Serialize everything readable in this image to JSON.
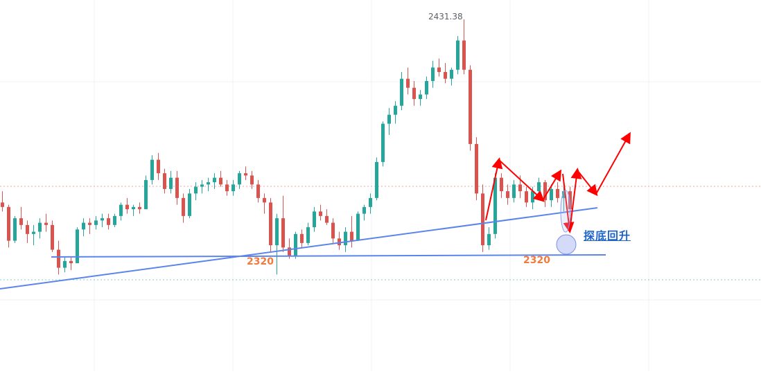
{
  "labels": {
    "peak_price": "2431.38",
    "support_left": "2320",
    "support_right": "2320",
    "annotation": "探底回升"
  },
  "colors": {
    "up": "#26a69a",
    "down": "#d9534f",
    "trendline": "#5b84ec",
    "arrow": "#ff0000",
    "price_line": "#f2a0a0",
    "low_line": "#7fd0c4",
    "support_text": "#f07b3c",
    "annotation_text": "#1e63c8"
  },
  "chart_data": {
    "type": "candlestick",
    "series_count": 1,
    "ylim": [
      2275,
      2440
    ],
    "support_level": 2320,
    "peak_high": 2431.38,
    "candles": [
      [
        2350,
        2355,
        2346,
        2348
      ],
      [
        2348,
        2349,
        2330,
        2333
      ],
      [
        2333,
        2344,
        2332,
        2343
      ],
      [
        2343,
        2348,
        2338,
        2340
      ],
      [
        2340,
        2342,
        2332,
        2336
      ],
      [
        2336,
        2340,
        2331,
        2337
      ],
      [
        2337,
        2343,
        2334,
        2341
      ],
      [
        2341,
        2345,
        2337,
        2340
      ],
      [
        2340,
        2342,
        2328,
        2329
      ],
      [
        2329,
        2333,
        2318,
        2321
      ],
      [
        2321,
        2326,
        2319,
        2324
      ],
      [
        2324,
        2326,
        2320,
        2323
      ],
      [
        2323,
        2339,
        2323,
        2338
      ],
      [
        2338,
        2343,
        2335,
        2341
      ],
      [
        2341,
        2343,
        2336,
        2340
      ],
      [
        2340,
        2344,
        2338,
        2342
      ],
      [
        2342,
        2345,
        2339,
        2343
      ],
      [
        2343,
        2345,
        2338,
        2340
      ],
      [
        2340,
        2345,
        2339,
        2344
      ],
      [
        2344,
        2350,
        2342,
        2349
      ],
      [
        2349,
        2352,
        2345,
        2347
      ],
      [
        2347,
        2349,
        2344,
        2348
      ],
      [
        2348,
        2350,
        2345,
        2347
      ],
      [
        2347,
        2362,
        2347,
        2360
      ],
      [
        2360,
        2371,
        2358,
        2369
      ],
      [
        2369,
        2372,
        2360,
        2363
      ],
      [
        2363,
        2365,
        2354,
        2356
      ],
      [
        2356,
        2364,
        2354,
        2361
      ],
      [
        2361,
        2364,
        2349,
        2352
      ],
      [
        2352,
        2354,
        2341,
        2344
      ],
      [
        2344,
        2356,
        2343,
        2354
      ],
      [
        2354,
        2359,
        2351,
        2357
      ],
      [
        2357,
        2360,
        2354,
        2358
      ],
      [
        2358,
        2361,
        2355,
        2359
      ],
      [
        2359,
        2363,
        2356,
        2361
      ],
      [
        2361,
        2364,
        2357,
        2358
      ],
      [
        2358,
        2360,
        2353,
        2355
      ],
      [
        2355,
        2360,
        2353,
        2358
      ],
      [
        2358,
        2364,
        2356,
        2363
      ],
      [
        2363,
        2366,
        2360,
        2362
      ],
      [
        2362,
        2364,
        2356,
        2358
      ],
      [
        2358,
        2360,
        2350,
        2352
      ],
      [
        2352,
        2354,
        2345,
        2350
      ],
      [
        2350,
        2352,
        2328,
        2331
      ],
      [
        2331,
        2345,
        2318,
        2343
      ],
      [
        2343,
        2353,
        2328,
        2330
      ],
      [
        2330,
        2334,
        2325,
        2326
      ],
      [
        2326,
        2337,
        2325,
        2336
      ],
      [
        2336,
        2338,
        2330,
        2332
      ],
      [
        2332,
        2341,
        2331,
        2339
      ],
      [
        2339,
        2348,
        2337,
        2346
      ],
      [
        2346,
        2349,
        2342,
        2344
      ],
      [
        2344,
        2347,
        2340,
        2341
      ],
      [
        2341,
        2343,
        2332,
        2334
      ],
      [
        2334,
        2337,
        2329,
        2331
      ],
      [
        2331,
        2339,
        2328,
        2337
      ],
      [
        2337,
        2344,
        2330,
        2333
      ],
      [
        2333,
        2346,
        2333,
        2345
      ],
      [
        2345,
        2349,
        2342,
        2348
      ],
      [
        2348,
        2354,
        2345,
        2352
      ],
      [
        2352,
        2370,
        2351,
        2368
      ],
      [
        2368,
        2386,
        2366,
        2385
      ],
      [
        2385,
        2392,
        2380,
        2389
      ],
      [
        2389,
        2395,
        2385,
        2393
      ],
      [
        2393,
        2408,
        2391,
        2405
      ],
      [
        2405,
        2410,
        2398,
        2401
      ],
      [
        2401,
        2404,
        2393,
        2396
      ],
      [
        2396,
        2400,
        2393,
        2398
      ],
      [
        2398,
        2406,
        2396,
        2404
      ],
      [
        2404,
        2413,
        2401,
        2410
      ],
      [
        2410,
        2414,
        2406,
        2408
      ],
      [
        2408,
        2412,
        2403,
        2405
      ],
      [
        2405,
        2410,
        2402,
        2409
      ],
      [
        2409,
        2424,
        2407,
        2422
      ],
      [
        2422,
        2431.38,
        2407,
        2409
      ],
      [
        2409,
        2411,
        2373,
        2376
      ],
      [
        2376,
        2379,
        2351,
        2354
      ],
      [
        2354,
        2358,
        2328,
        2331
      ],
      [
        2331,
        2339,
        2329,
        2336
      ],
      [
        2336,
        2363,
        2334,
        2361
      ],
      [
        2361,
        2363,
        2352,
        2355
      ],
      [
        2355,
        2358,
        2349,
        2352
      ],
      [
        2352,
        2360,
        2350,
        2358
      ],
      [
        2358,
        2362,
        2352,
        2355
      ],
      [
        2355,
        2357,
        2348,
        2350
      ],
      [
        2350,
        2357,
        2347,
        2355
      ],
      [
        2355,
        2361,
        2353,
        2359
      ],
      [
        2359,
        2360,
        2348,
        2351
      ],
      [
        2351,
        2358,
        2348,
        2356
      ],
      [
        2356,
        2359,
        2350,
        2352
      ],
      [
        2352,
        2357,
        2346,
        2355
      ],
      [
        2355,
        2357,
        2344,
        2347
      ]
    ]
  }
}
